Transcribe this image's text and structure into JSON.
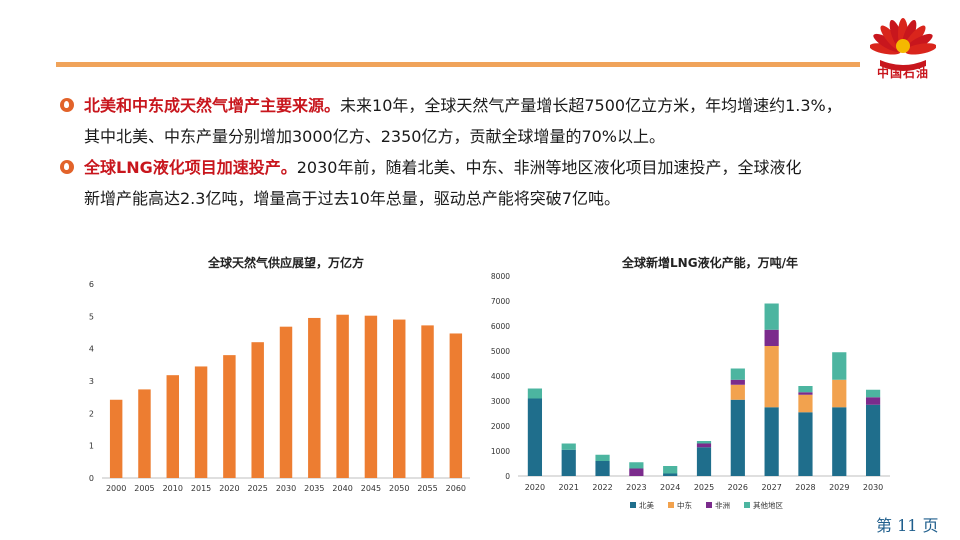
{
  "header": {
    "logo_label": "中国石油",
    "logo_colors": {
      "red": "#c8161d",
      "yellow": "#f5b800"
    }
  },
  "bullets": [
    {
      "highlight": "北美和中东成天然气增产主要来源。",
      "line1": "未来10年，全球天然气产量增长超7500亿立方米，年均增速约1.3%，",
      "line2": "其中北美、中东产量分别增加3000亿方、2350亿方，贡献全球增量的70%以上。"
    },
    {
      "highlight": "全球LNG液化项目加速投产。",
      "line1": "2030年前，随着北美、中东、非洲等地区液化项目加速投产，全球液化",
      "line2": "新增产能高达2.3亿吨，增量高于过去10年总量，驱动总产能将突破7亿吨。"
    }
  ],
  "chart_data": [
    {
      "type": "bar",
      "title": "全球天然气供应展望，万亿方",
      "categories": [
        "2000",
        "2005",
        "2010",
        "2015",
        "2020",
        "2025",
        "2030",
        "2035",
        "2040",
        "2045",
        "2050",
        "2055",
        "2060"
      ],
      "values": [
        2.42,
        2.74,
        3.18,
        3.45,
        3.8,
        4.2,
        4.68,
        4.95,
        5.05,
        5.02,
        4.9,
        4.72,
        4.47
      ],
      "ylim": [
        0,
        6
      ],
      "yticks": [
        "0",
        "1",
        "2",
        "3",
        "4",
        "5",
        "6"
      ],
      "color": "#ed7d31",
      "grid": false
    },
    {
      "type": "bar",
      "stacked": true,
      "title": "全球新增LNG液化产能，万吨/年",
      "categories": [
        "2020",
        "2021",
        "2022",
        "2023",
        "2024",
        "2025",
        "2026",
        "2027",
        "2028",
        "2029",
        "2030"
      ],
      "ylim": [
        0,
        8000
      ],
      "yticks": [
        "0",
        "1000",
        "2000",
        "3000",
        "4000",
        "5000",
        "6000",
        "7000",
        "8000"
      ],
      "legend_position": "bottom",
      "series": [
        {
          "name": "北美",
          "color": "#1f6e8c",
          "values": [
            3100,
            1050,
            600,
            0,
            100,
            1150,
            3050,
            2750,
            2550,
            2750,
            2850
          ]
        },
        {
          "name": "中东",
          "color": "#f2a24e",
          "values": [
            0,
            0,
            0,
            0,
            0,
            0,
            600,
            2450,
            700,
            1100,
            0
          ]
        },
        {
          "name": "非洲",
          "color": "#7b2b8c",
          "values": [
            0,
            0,
            0,
            300,
            0,
            150,
            200,
            650,
            100,
            0,
            300
          ]
        },
        {
          "name": "其他地区",
          "color": "#4cb5a0",
          "values": [
            400,
            250,
            250,
            250,
            300,
            100,
            450,
            1050,
            250,
            1100,
            300
          ]
        }
      ]
    }
  ],
  "footer": {
    "page_label": "第 11 页"
  }
}
